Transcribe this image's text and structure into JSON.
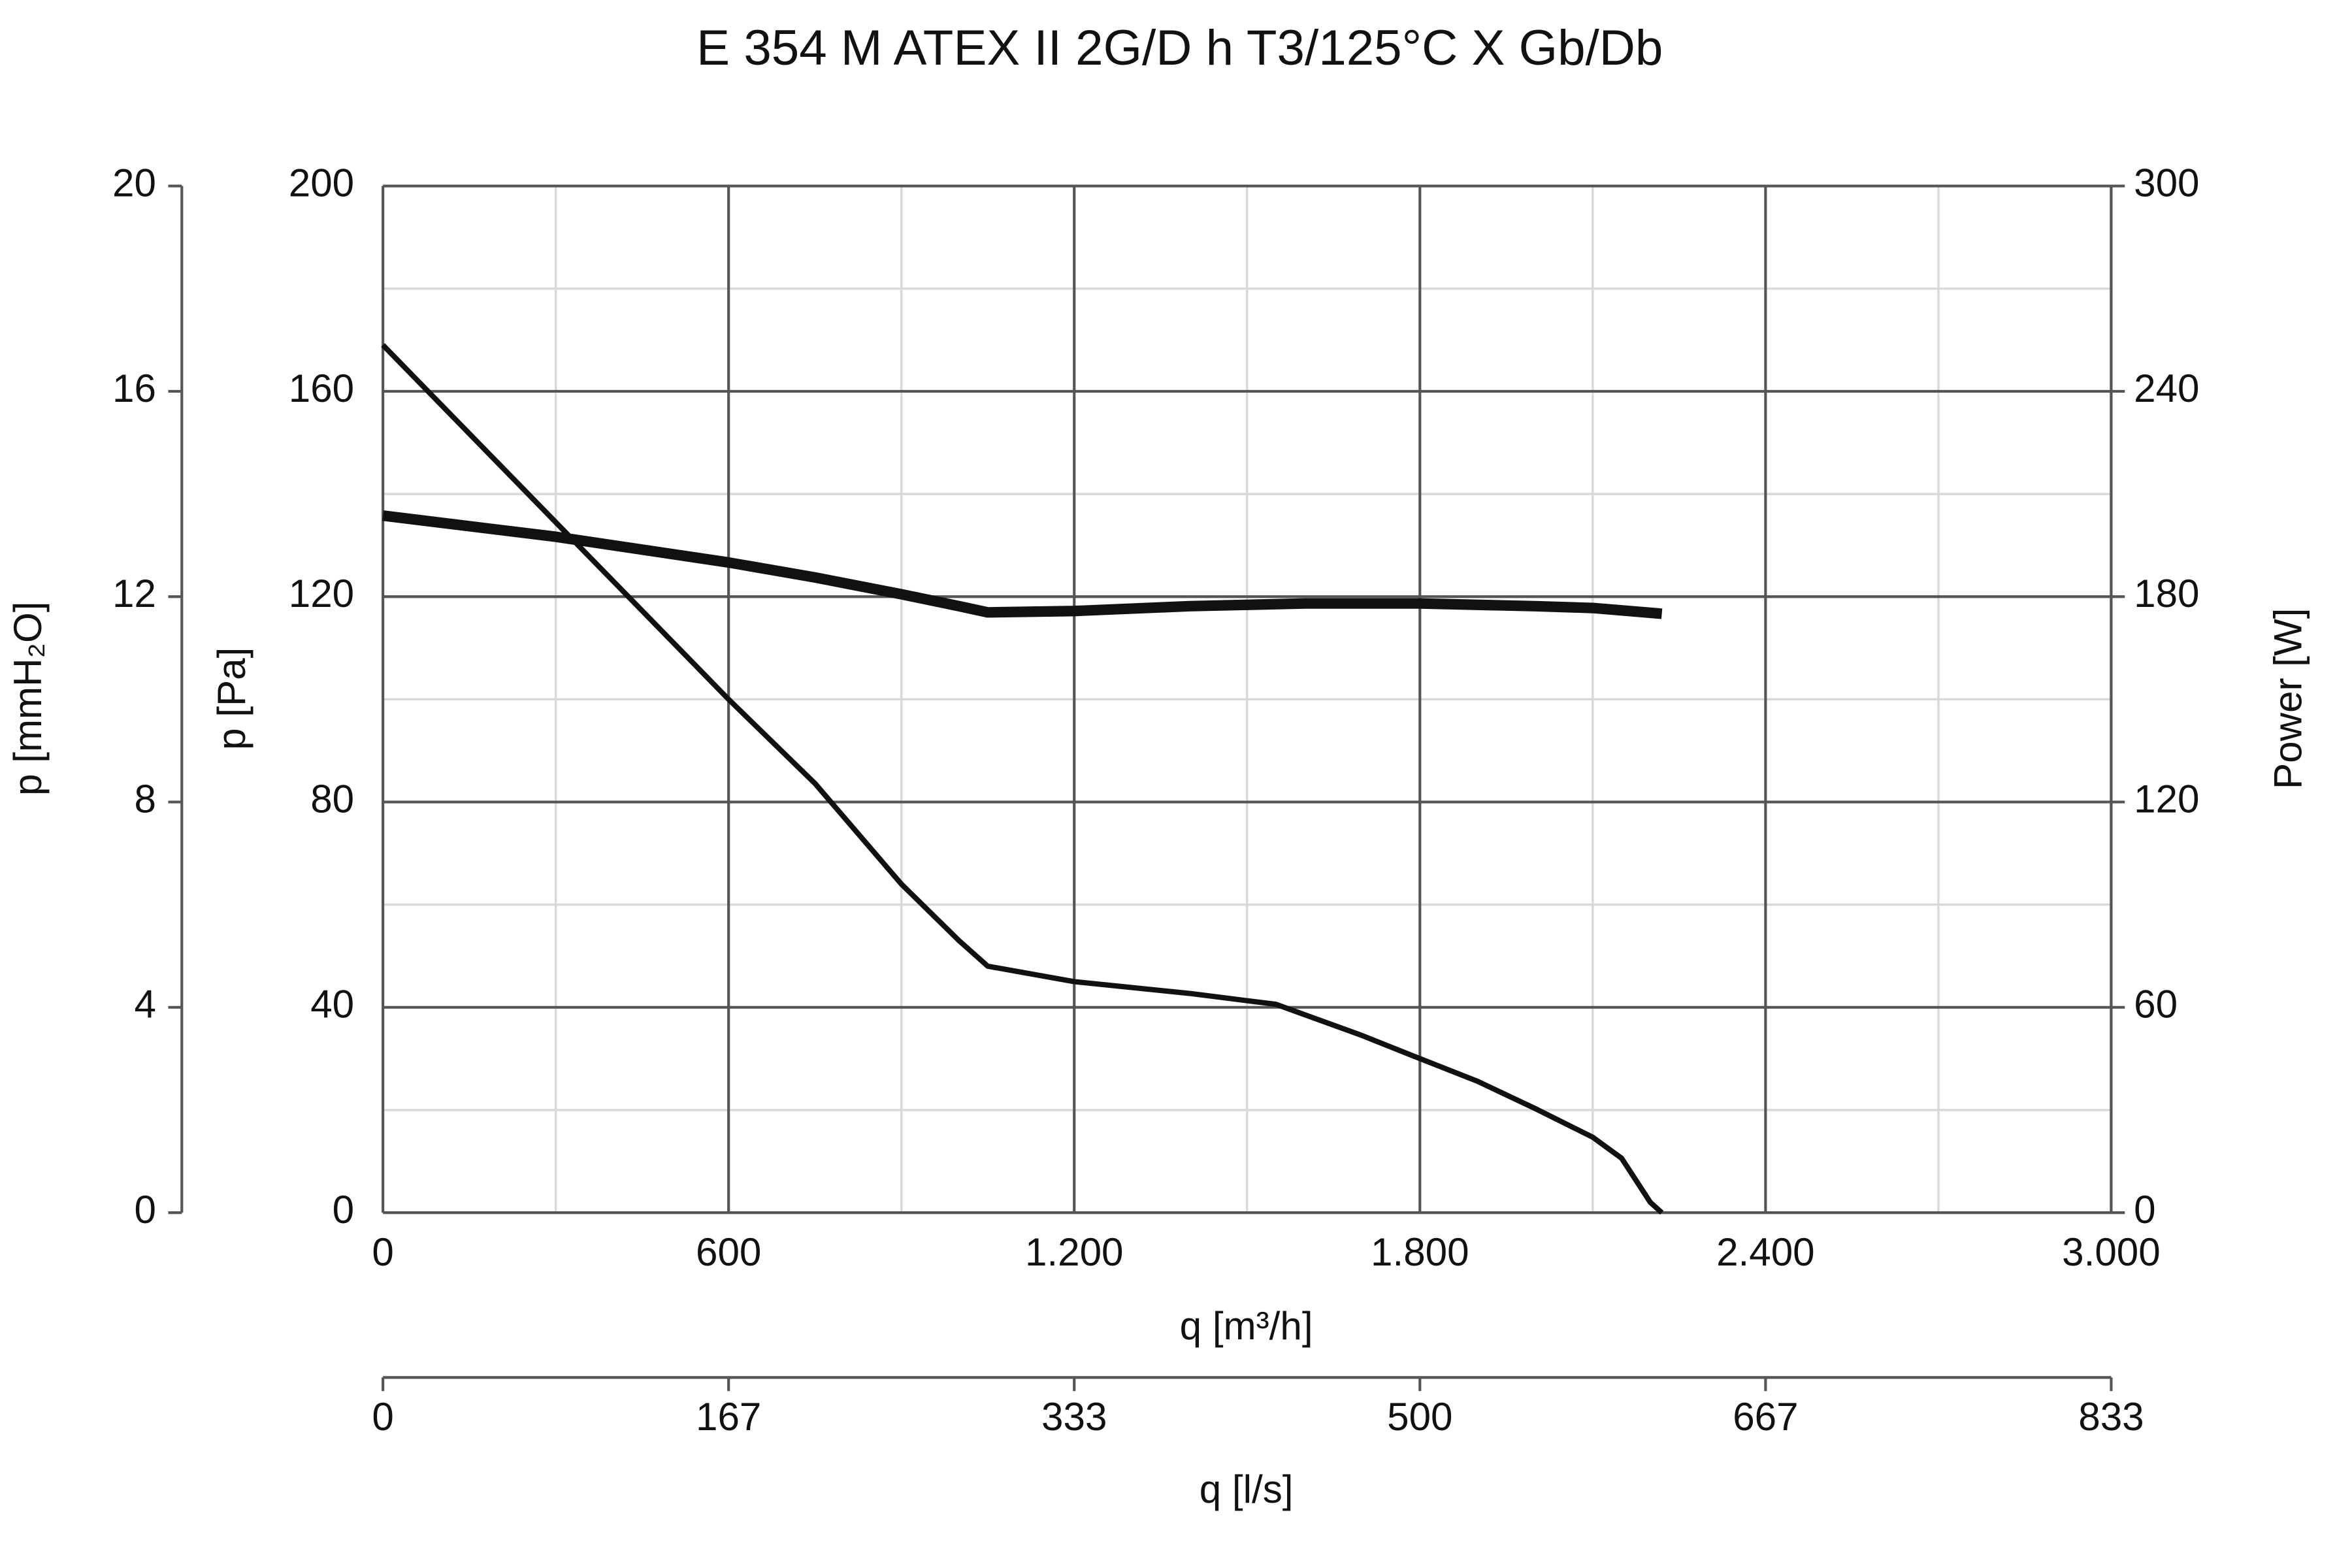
{
  "chart_data": {
    "type": "line",
    "title": "E 354 M ATEX II 2G/D h T3/125°C X Gb/Db",
    "x_label": "q [m³/h]",
    "x2_label": "q [l/s]",
    "y_label": "p [Pa]",
    "y2_label": "Power [W]",
    "y3_label": "p [mmH₂O]",
    "xlim": [
      0,
      3000
    ],
    "xticks": [
      0,
      600,
      {
        "value": 1200,
        "label": "1.200"
      },
      {
        "value": 1800,
        "label": "1.800"
      },
      {
        "value": 2400,
        "label": "2.400"
      },
      {
        "value": 3000,
        "label": "3.000"
      }
    ],
    "x2lim": [
      0,
      833.33
    ],
    "x2ticks": [
      0,
      {
        "value": 166.67,
        "label": "167"
      },
      {
        "value": 333.33,
        "label": "333"
      },
      500,
      {
        "value": 666.67,
        "label": "667"
      },
      {
        "value": 833.33,
        "label": "833"
      }
    ],
    "ylim": [
      0,
      200
    ],
    "yticks": [
      0,
      40,
      80,
      120,
      160,
      200
    ],
    "y2lim": [
      0,
      300
    ],
    "y2ticks": [
      0,
      60,
      120,
      180,
      240,
      300
    ],
    "y3lim": [
      0,
      20
    ],
    "y3ticks": [
      0,
      4,
      8,
      12,
      16,
      20
    ],
    "grid": true,
    "minor_grid": true,
    "series": [
      {
        "color": "#111111",
        "x": [
          0,
          300,
          600,
          750,
          900,
          1000,
          1050,
          1100,
          1200,
          1400,
          1550,
          1700,
          1800,
          1900,
          2000,
          2100,
          2150,
          2200,
          2220
        ],
        "values": [
          169,
          134.5,
          100,
          83.6,
          64,
          53,
          48,
          47,
          45,
          42.7,
          40.6,
          34.5,
          30,
          25.6,
          20.3,
          14.7,
          10.6,
          2,
          0
        ]
      },
      {
        "color": "#111111",
        "axis": "y2",
        "x": [
          0,
          300,
          600,
          750,
          900,
          1000,
          1050,
          1200,
          1400,
          1600,
          1800,
          2000,
          2100,
          2220
        ],
        "values": [
          203.7,
          197.5,
          190,
          185.6,
          180.7,
          177.2,
          175.4,
          175.8,
          177.2,
          178,
          178,
          177.2,
          176.7,
          175
        ]
      }
    ]
  }
}
